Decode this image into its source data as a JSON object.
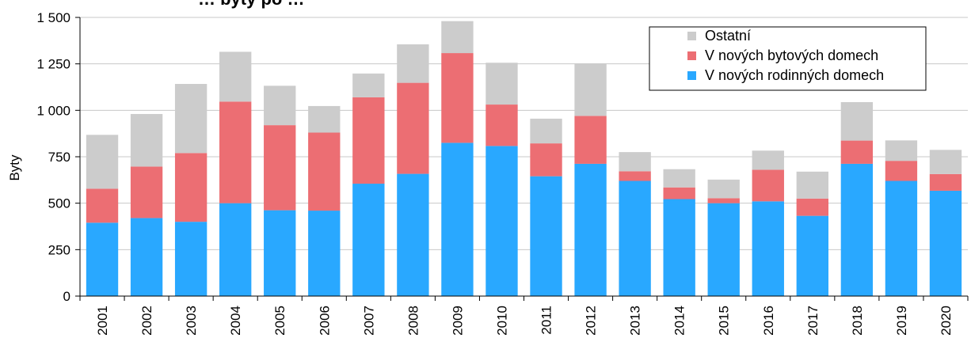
{
  "chart_data": {
    "type": "bar",
    "stacked": true,
    "title": "… byty po …",
    "ylabel": "Byty",
    "xlabel": "",
    "ylim": [
      0,
      1500
    ],
    "yticks": [
      0,
      250,
      500,
      750,
      1000,
      1250,
      1500
    ],
    "ytick_labels": [
      "0",
      "250",
      "500",
      "750",
      "1 000",
      "1 250",
      "1 500"
    ],
    "grid": "horizontal",
    "legend_position": "top-right",
    "categories": [
      "2001",
      "2002",
      "2003",
      "2004",
      "2005",
      "2006",
      "2007",
      "2008",
      "2009",
      "2010",
      "2011",
      "2012",
      "2013",
      "2014",
      "2015",
      "2016",
      "2017",
      "2018",
      "2019",
      "2020"
    ],
    "series": [
      {
        "name": "V nových rodinných domech",
        "color": "#29A8FF",
        "values": [
          395,
          420,
          400,
          500,
          462,
          460,
          605,
          658,
          825,
          808,
          645,
          712,
          620,
          522,
          500,
          510,
          432,
          712,
          620,
          567
        ]
      },
      {
        "name": "V nových bytových domech",
        "color": "#EC6E73",
        "values": [
          183,
          277,
          370,
          547,
          458,
          420,
          465,
          490,
          483,
          223,
          177,
          258,
          52,
          63,
          27,
          170,
          93,
          125,
          108,
          90
        ]
      },
      {
        "name": "Ostatní",
        "color": "#CCCCCC",
        "values": [
          290,
          283,
          372,
          268,
          212,
          143,
          128,
          207,
          172,
          225,
          133,
          283,
          103,
          98,
          100,
          103,
          145,
          207,
          110,
          130
        ]
      }
    ],
    "legend_order": [
      "Ostatní",
      "V nových bytových domech",
      "V nových rodinných domech"
    ]
  }
}
